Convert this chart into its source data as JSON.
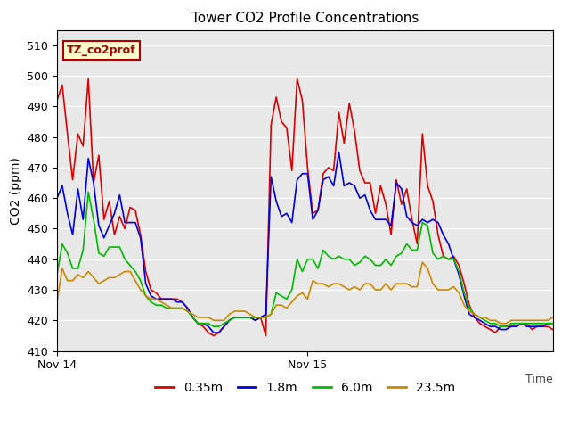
{
  "title": "Tower CO2 Profile Concentrations",
  "ylabel": "CO2 (ppm)",
  "ylim": [
    410,
    515
  ],
  "yticks": [
    410,
    420,
    430,
    440,
    450,
    460,
    470,
    480,
    490,
    500,
    510
  ],
  "plot_bg_color": "#e8e8e8",
  "fig_bg_color": "#ffffff",
  "annotation_text": "TZ_co2prof",
  "annotation_bg": "#ffffcc",
  "annotation_border": "#aa0000",
  "annotation_text_color": "#aa0000",
  "xtick_positions": [
    0,
    48
  ],
  "xtick_labels": [
    "Nov 14",
    "Nov 15"
  ],
  "time_label": "Time",
  "grid_color": "#ffffff",
  "series": {
    "0.35m": {
      "color": "#dd0000",
      "lw": 1.2,
      "values": [
        492,
        497,
        481,
        466,
        481,
        477,
        499,
        465,
        474,
        453,
        459,
        448,
        454,
        450,
        457,
        456,
        448,
        436,
        430,
        429,
        427,
        427,
        427,
        427,
        426,
        424,
        421,
        419,
        418,
        416,
        415,
        416,
        418,
        420,
        421,
        421,
        421,
        421,
        420,
        421,
        415,
        484,
        493,
        485,
        483,
        469,
        499,
        492,
        470,
        455,
        456,
        468,
        470,
        469,
        488,
        478,
        491,
        482,
        469,
        465,
        465,
        455,
        464,
        458,
        448,
        466,
        458,
        463,
        453,
        445,
        481,
        464,
        459,
        448,
        441,
        440,
        441,
        438,
        432,
        425,
        421,
        419,
        418,
        417,
        416,
        418,
        418,
        418,
        418,
        419,
        419,
        417,
        418,
        418,
        418,
        417
      ]
    },
    "1.8m": {
      "color": "#0000dd",
      "lw": 1.2,
      "values": [
        460,
        464,
        455,
        448,
        463,
        453,
        473,
        465,
        451,
        447,
        451,
        455,
        461,
        452,
        452,
        452,
        447,
        432,
        428,
        427,
        427,
        427,
        427,
        426,
        426,
        424,
        421,
        419,
        419,
        418,
        416,
        416,
        418,
        420,
        421,
        421,
        421,
        421,
        420,
        421,
        422,
        467,
        459,
        454,
        455,
        452,
        466,
        468,
        468,
        453,
        456,
        466,
        467,
        464,
        475,
        464,
        465,
        464,
        460,
        461,
        456,
        453,
        453,
        453,
        451,
        465,
        463,
        454,
        452,
        451,
        453,
        452,
        453,
        452,
        448,
        445,
        440,
        435,
        428,
        422,
        421,
        420,
        419,
        418,
        418,
        417,
        417,
        418,
        418,
        419,
        418,
        418,
        418,
        418,
        419,
        419
      ]
    },
    "6.0m": {
      "color": "#00bb00",
      "lw": 1.2,
      "values": [
        435,
        445,
        442,
        437,
        437,
        443,
        462,
        453,
        442,
        441,
        444,
        444,
        444,
        440,
        438,
        436,
        433,
        428,
        426,
        425,
        425,
        424,
        424,
        424,
        424,
        423,
        421,
        419,
        419,
        419,
        418,
        418,
        419,
        420,
        421,
        421,
        421,
        421,
        421,
        421,
        421,
        422,
        429,
        428,
        427,
        430,
        440,
        436,
        440,
        440,
        437,
        443,
        441,
        440,
        441,
        440,
        440,
        438,
        439,
        441,
        440,
        438,
        438,
        440,
        438,
        441,
        442,
        445,
        443,
        443,
        452,
        451,
        442,
        440,
        441,
        440,
        440,
        436,
        429,
        424,
        422,
        421,
        420,
        419,
        419,
        418,
        418,
        419,
        419,
        419,
        419,
        419,
        419,
        419,
        419,
        419
      ]
    },
    "23.5m": {
      "color": "#cc8800",
      "lw": 1.2,
      "values": [
        426,
        437,
        433,
        433,
        435,
        434,
        436,
        434,
        432,
        433,
        434,
        434,
        435,
        436,
        436,
        433,
        430,
        428,
        427,
        427,
        426,
        425,
        424,
        424,
        424,
        423,
        422,
        421,
        421,
        421,
        420,
        420,
        420,
        422,
        423,
        423,
        423,
        422,
        421,
        421,
        421,
        422,
        425,
        425,
        424,
        426,
        428,
        429,
        427,
        433,
        432,
        432,
        431,
        432,
        432,
        431,
        430,
        431,
        430,
        432,
        432,
        430,
        430,
        432,
        430,
        432,
        432,
        432,
        431,
        431,
        439,
        437,
        432,
        430,
        430,
        430,
        431,
        429,
        425,
        423,
        422,
        421,
        421,
        420,
        420,
        419,
        419,
        420,
        420,
        420,
        420,
        420,
        420,
        420,
        420,
        421
      ]
    }
  }
}
